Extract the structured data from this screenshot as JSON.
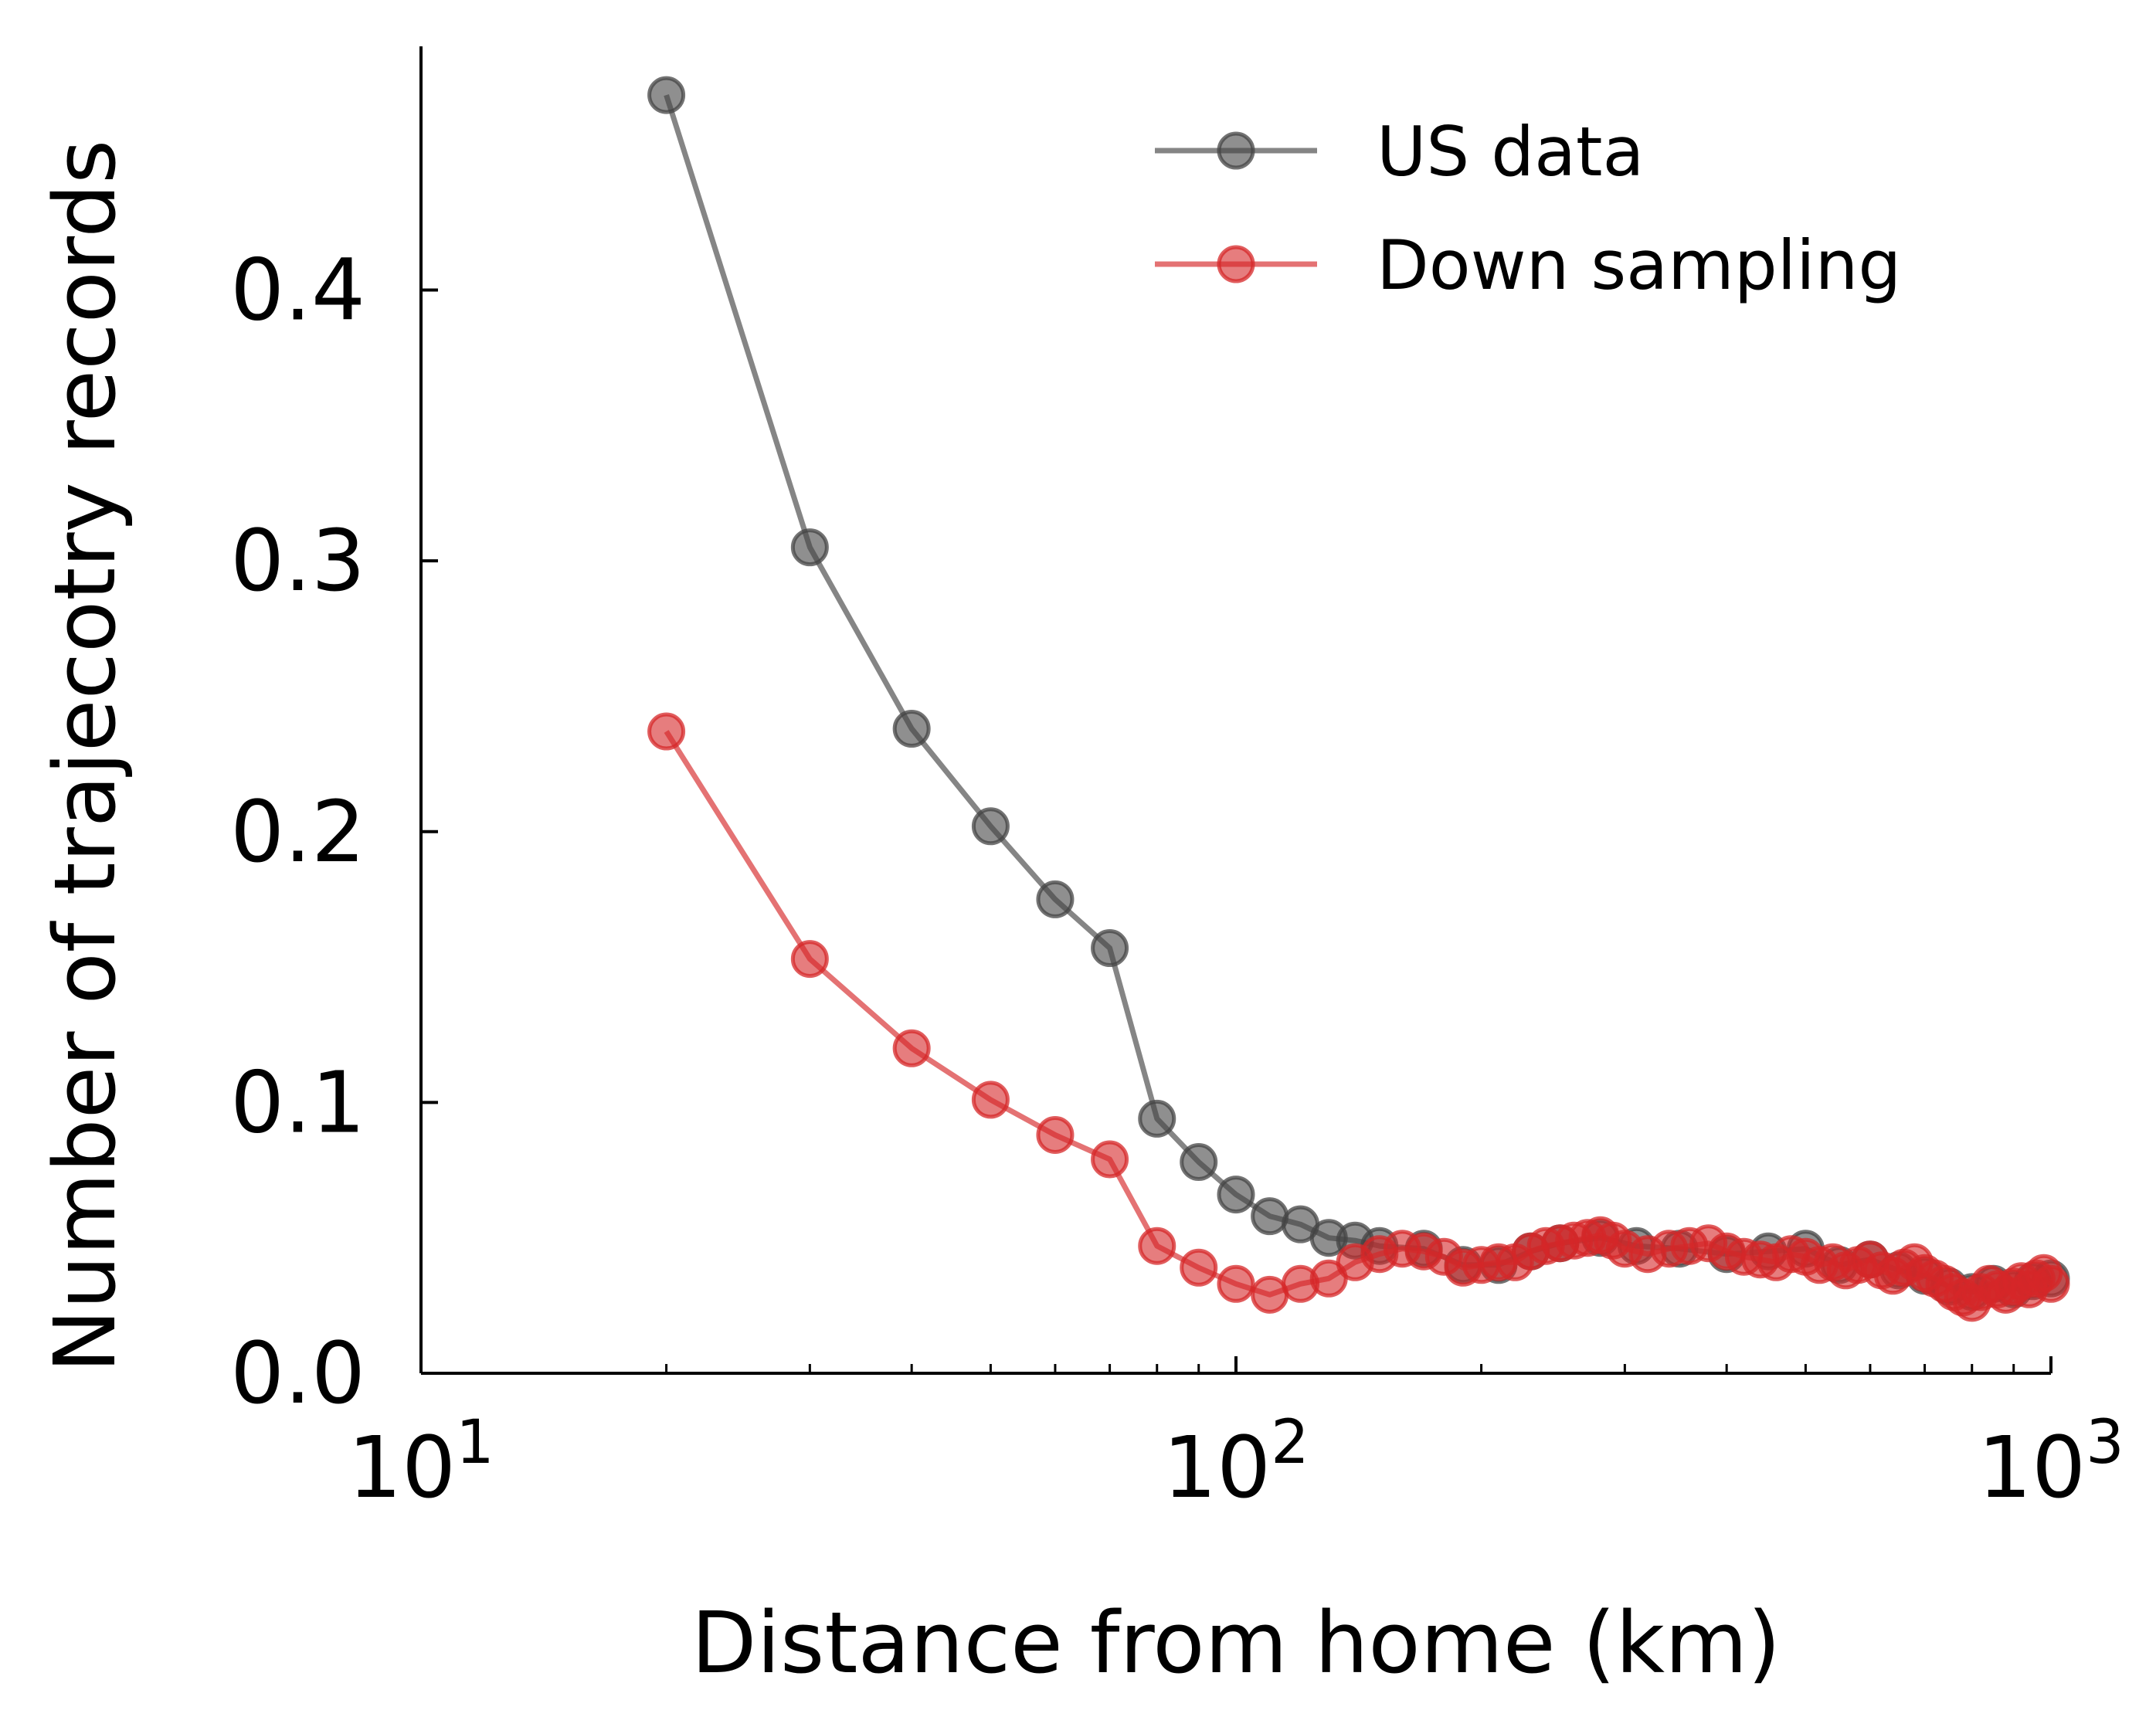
{
  "chart_data": {
    "type": "line",
    "xlabel": "Distance from home (km)",
    "ylabel": "Number of trajecotry records",
    "x_scale": "log",
    "xlim": [
      10,
      1000
    ],
    "ylim": [
      0,
      0.49
    ],
    "x_ticks": [
      {
        "value": 10,
        "base": "10",
        "exp": "1"
      },
      {
        "value": 100,
        "base": "10",
        "exp": "2"
      },
      {
        "value": 1000,
        "base": "10",
        "exp": "3"
      }
    ],
    "y_ticks": [
      {
        "value": 0.0,
        "label": "0.0"
      },
      {
        "value": 0.1,
        "label": "0.1"
      },
      {
        "value": 0.2,
        "label": "0.2"
      },
      {
        "value": 0.3,
        "label": "0.3"
      },
      {
        "value": 0.4,
        "label": "0.4"
      }
    ],
    "grid": false,
    "legend_position": "top-right",
    "series": [
      {
        "name": "US data",
        "color": "#444444",
        "x": [
          20,
          30,
          40,
          50,
          60,
          70,
          80,
          90,
          100,
          110,
          120,
          130,
          140,
          150,
          170,
          190,
          210,
          230,
          250,
          280,
          310,
          350,
          400,
          450,
          500,
          550,
          600,
          650,
          700,
          750,
          800,
          850,
          900,
          950,
          1000
        ],
        "y": [
          0.472,
          0.305,
          0.238,
          0.202,
          0.175,
          0.157,
          0.094,
          0.078,
          0.066,
          0.058,
          0.055,
          0.05,
          0.049,
          0.047,
          0.046,
          0.04,
          0.04,
          0.045,
          0.048,
          0.05,
          0.047,
          0.046,
          0.044,
          0.045,
          0.046,
          0.04,
          0.042,
          0.038,
          0.036,
          0.032,
          0.03,
          0.033,
          0.031,
          0.034,
          0.035
        ]
      },
      {
        "name": "Down sampling",
        "color": "#d62728",
        "x": [
          20,
          30,
          40,
          50,
          60,
          70,
          80,
          90,
          100,
          110,
          120,
          130,
          140,
          150,
          160,
          170,
          180,
          190,
          200,
          210,
          220,
          230,
          240,
          250,
          260,
          270,
          280,
          290,
          300,
          320,
          340,
          360,
          380,
          400,
          420,
          440,
          460,
          480,
          500,
          520,
          540,
          560,
          580,
          600,
          620,
          640,
          660,
          680,
          700,
          720,
          740,
          760,
          780,
          800,
          820,
          840,
          860,
          880,
          900,
          920,
          940,
          960,
          980,
          1000
        ],
        "y": [
          0.237,
          0.153,
          0.12,
          0.101,
          0.088,
          0.079,
          0.047,
          0.039,
          0.033,
          0.029,
          0.033,
          0.035,
          0.041,
          0.044,
          0.046,
          0.045,
          0.043,
          0.039,
          0.04,
          0.041,
          0.041,
          0.045,
          0.047,
          0.048,
          0.049,
          0.05,
          0.051,
          0.049,
          0.046,
          0.044,
          0.046,
          0.047,
          0.048,
          0.045,
          0.043,
          0.042,
          0.041,
          0.044,
          0.043,
          0.04,
          0.041,
          0.038,
          0.04,
          0.042,
          0.038,
          0.036,
          0.039,
          0.041,
          0.037,
          0.035,
          0.033,
          0.03,
          0.028,
          0.026,
          0.03,
          0.033,
          0.031,
          0.029,
          0.032,
          0.034,
          0.031,
          0.035,
          0.037,
          0.033
        ]
      }
    ]
  }
}
